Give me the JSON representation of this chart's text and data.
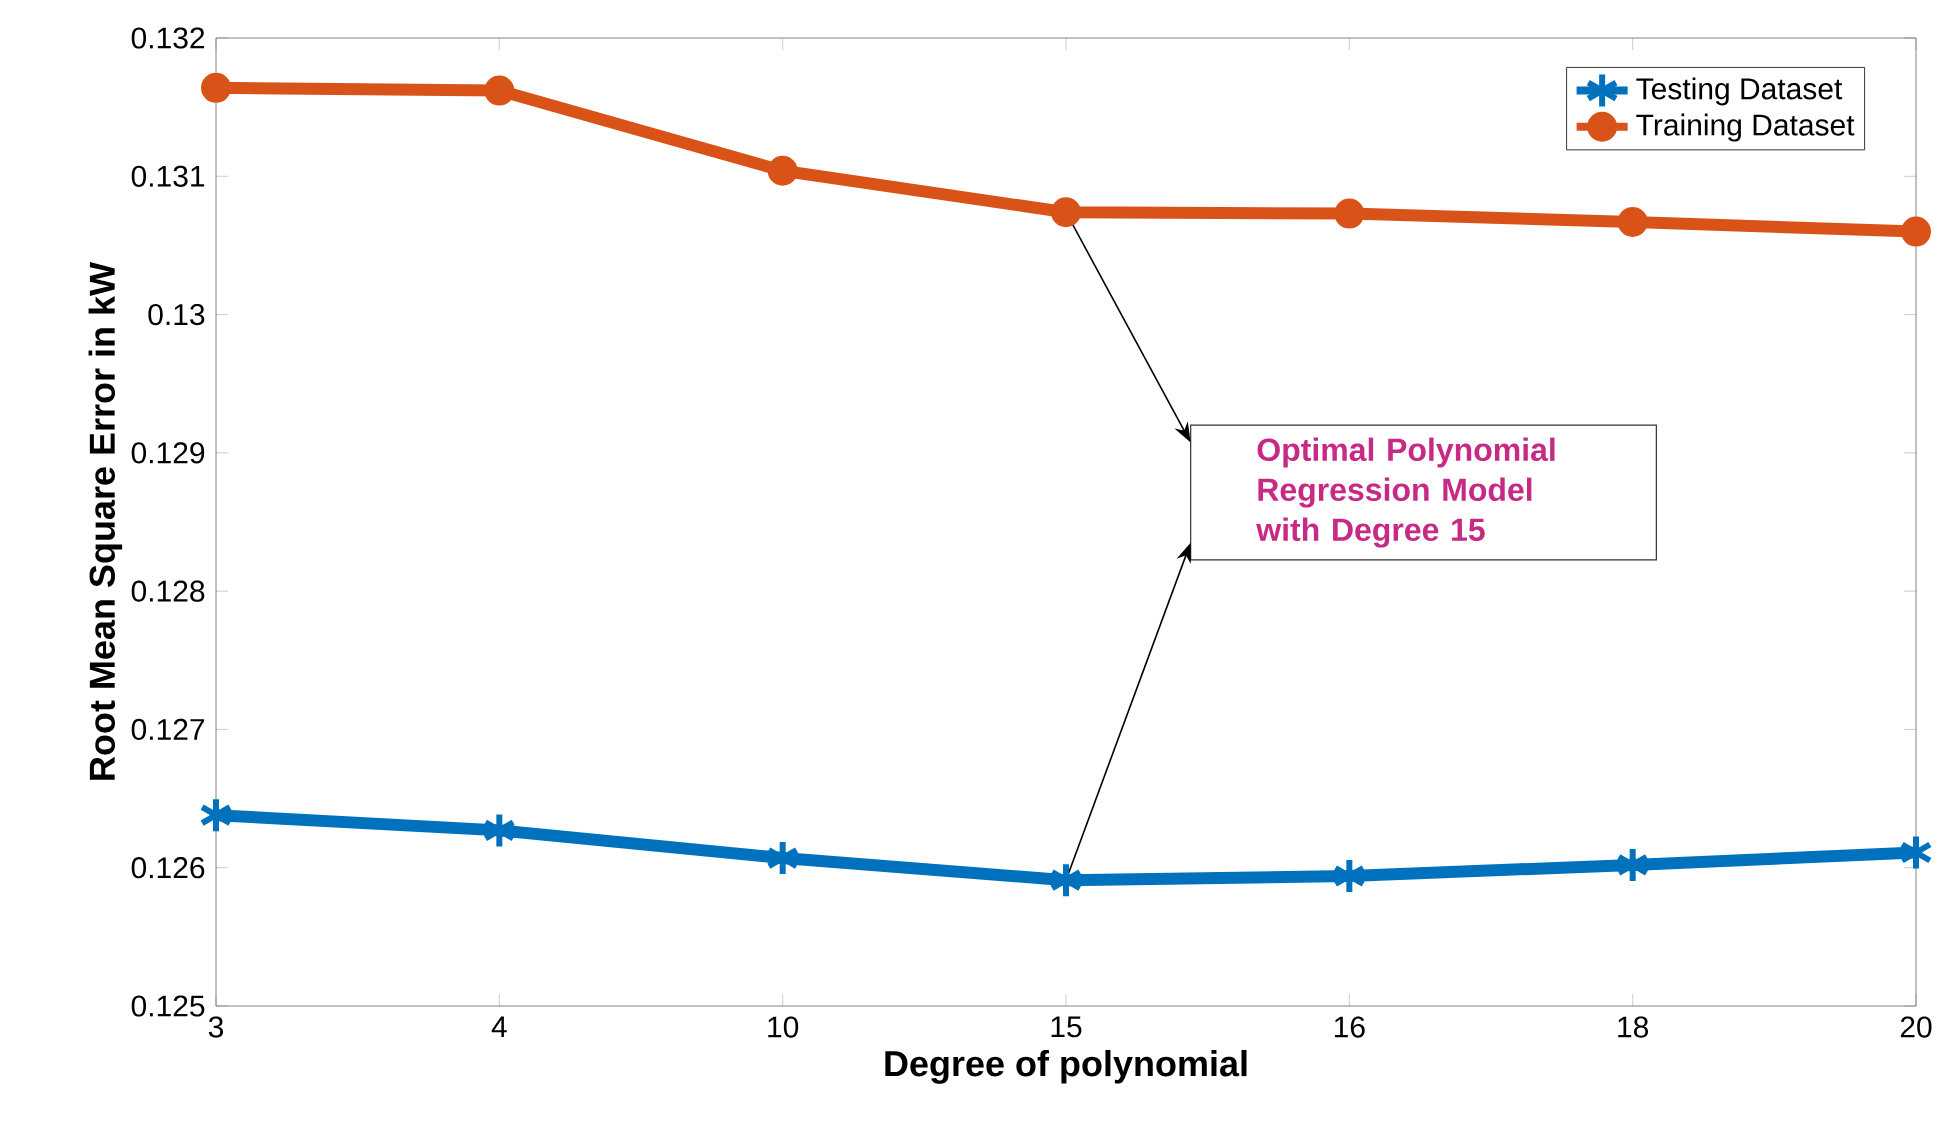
{
  "chart_data": {
    "type": "line",
    "xlabel": "Degree of polynomial",
    "ylabel": "Root Mean Square Error in kW",
    "categories": [
      "3",
      "4",
      "10",
      "15",
      "16",
      "18",
      "20"
    ],
    "series": [
      {
        "name": "Testing Dataset",
        "color": "#0072bd",
        "marker": "cross",
        "values": [
          0.12638,
          0.12627,
          0.12607,
          0.12591,
          0.12594,
          0.12602,
          0.12611
        ]
      },
      {
        "name": "Training Dataset",
        "color": "#d95319",
        "marker": "circle",
        "values": [
          0.13164,
          0.13162,
          0.13104,
          0.13074,
          0.13073,
          0.13067,
          0.1306
        ]
      }
    ],
    "ylim": [
      0.125,
      0.132
    ],
    "yticks": [
      0.125,
      0.126,
      0.127,
      0.128,
      0.129,
      0.13,
      0.131,
      0.132
    ],
    "legend": "top right",
    "grid": false,
    "line_style": "solid",
    "annotations": [
      "Optimal Polynomial Regression Model with Degree 15"
    ]
  }
}
